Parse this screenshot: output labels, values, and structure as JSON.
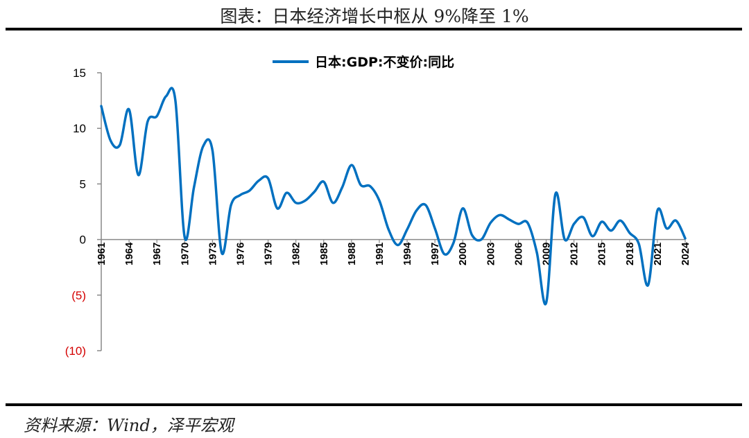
{
  "title": "图表：日本经济增长中枢从 9%降至 1%",
  "source": "资料来源：Wind，泽平宏观",
  "colors": {
    "series": "#0070C0",
    "negative_tick": "#D40000"
  },
  "chart_data": {
    "type": "line",
    "title": "图表：日本经济增长中枢从 9%降至 1%",
    "ylim": [
      -10,
      15
    ],
    "yticks": [
      15,
      10,
      5,
      0,
      -5,
      -10
    ],
    "ytick_labels": [
      "15",
      "10",
      "5",
      "0",
      "(5)",
      "(10)"
    ],
    "xtick_labels": [
      "1961",
      "1964",
      "1967",
      "1970",
      "1973",
      "1976",
      "1979",
      "1982",
      "1985",
      "1988",
      "1991",
      "1994",
      "1997",
      "2000",
      "2003",
      "2006",
      "2009",
      "2012",
      "2015",
      "2018",
      "2021",
      "2024"
    ],
    "legend_position": "top-center",
    "grid": false,
    "x": [
      1961,
      1962,
      1963,
      1964,
      1965,
      1966,
      1967,
      1968,
      1969,
      1970,
      1971,
      1972,
      1973,
      1974,
      1975,
      1976,
      1977,
      1978,
      1979,
      1980,
      1981,
      1982,
      1983,
      1984,
      1985,
      1986,
      1987,
      1988,
      1989,
      1990,
      1991,
      1992,
      1993,
      1994,
      1995,
      1996,
      1997,
      1998,
      1999,
      2000,
      2001,
      2002,
      2003,
      2004,
      2005,
      2006,
      2007,
      2008,
      2009,
      2010,
      2011,
      2012,
      2013,
      2014,
      2015,
      2016,
      2017,
      2018,
      2019,
      2020,
      2021,
      2022,
      2023,
      2024
    ],
    "series": [
      {
        "name": "日本:GDP:不变价:同比",
        "values": [
          12.0,
          8.9,
          8.5,
          11.7,
          5.8,
          10.6,
          11.1,
          12.9,
          12.5,
          0.2,
          4.7,
          8.4,
          8.0,
          -1.2,
          3.1,
          4.0,
          4.4,
          5.3,
          5.5,
          2.8,
          4.2,
          3.3,
          3.5,
          4.3,
          5.2,
          3.3,
          4.7,
          6.7,
          4.9,
          4.8,
          3.5,
          0.9,
          -0.5,
          0.9,
          2.6,
          3.1,
          1.0,
          -1.3,
          -0.3,
          2.8,
          0.4,
          0.0,
          1.5,
          2.2,
          1.8,
          1.4,
          1.5,
          -1.2,
          -5.7,
          4.1,
          0.0,
          1.4,
          2.0,
          0.3,
          1.6,
          0.8,
          1.7,
          0.6,
          -0.4,
          -4.1,
          2.6,
          1.0,
          1.7,
          0.1
        ]
      }
    ]
  }
}
